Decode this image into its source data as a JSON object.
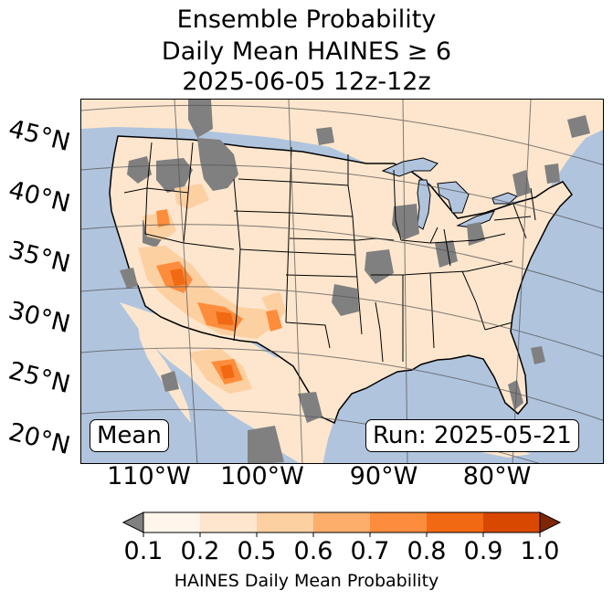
{
  "title": {
    "line1": "Ensemble Probability",
    "line2": "Daily Mean HAINES ≥ 6",
    "line3": "2025-06-05 12z-12z"
  },
  "map": {
    "lat_labels": [
      "45°N",
      "40°N",
      "35°N",
      "30°N",
      "25°N",
      "20°N"
    ],
    "lon_labels": [
      "110°W",
      "100°W",
      "90°W",
      "80°W"
    ],
    "badge_left": "Mean",
    "badge_right": "Run: 2025-05-21",
    "colors": {
      "ocean": "#b0c4de",
      "land": "#fde6cd",
      "no_data": "#808080",
      "lake": "#b0c4de"
    }
  },
  "colorbar": {
    "ticks": [
      "0.1",
      "0.2",
      "0.5",
      "0.6",
      "0.7",
      "0.8",
      "0.9",
      "1.0"
    ],
    "label": "HAINES Daily Mean Probability",
    "under_color": "#808080",
    "over_color": "#7f2704",
    "colors": [
      "#fff5eb",
      "#fee6ce",
      "#fdd0a2",
      "#fdae6b",
      "#fd8d3c",
      "#f16913",
      "#d94801"
    ]
  }
}
